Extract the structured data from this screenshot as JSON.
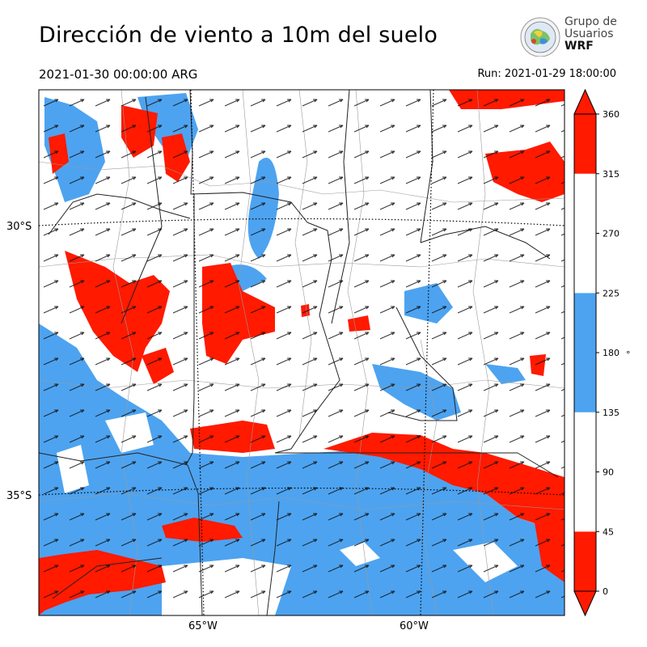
{
  "header": {
    "title": "Dirección de viento a 10m del suelo",
    "valid_time": "2021-01-30 00:00:00 ARG",
    "run_time": "Run: 2021-01-29 18:00:00"
  },
  "logo": {
    "line1": "Grupo de",
    "line2": "Usuarios",
    "line3": "WRF"
  },
  "map": {
    "lat_labels": [
      "30°S",
      "35°S"
    ],
    "lon_labels": [
      "65°W",
      "60°W"
    ],
    "colors": {
      "red": "#ff1a00",
      "blue": "#4da3f0",
      "white": "#ffffff",
      "borders": "#222222",
      "gridlines": "#000000"
    }
  },
  "colorbar": {
    "unit": "°",
    "ticks": [
      "0",
      "45",
      "90",
      "135",
      "180",
      "225",
      "270",
      "315",
      "360"
    ],
    "bands": [
      {
        "from": 0,
        "to": 45,
        "color": "#ff1a00"
      },
      {
        "from": 45,
        "to": 135,
        "color": "#ffffff"
      },
      {
        "from": 135,
        "to": 225,
        "color": "#4da3f0"
      },
      {
        "from": 225,
        "to": 315,
        "color": "#ffffff"
      },
      {
        "from": 315,
        "to": 360,
        "color": "#ff1a00"
      }
    ]
  }
}
